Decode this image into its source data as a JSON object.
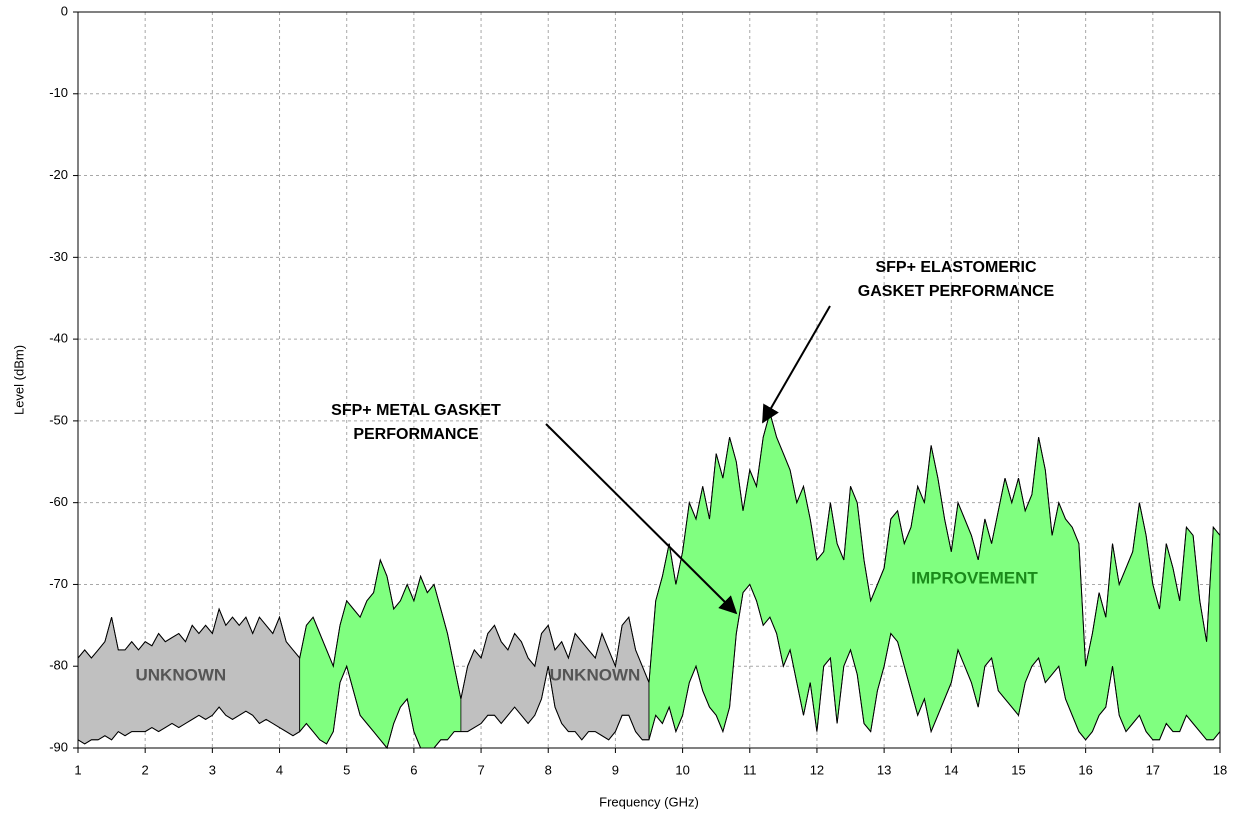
{
  "chart_data": {
    "type": "band",
    "xlabel": "Frequency (GHz)",
    "ylabel": "Level (dBm)",
    "xlim": [
      1,
      18
    ],
    "ylim": [
      -90,
      0
    ],
    "xticks": [
      1,
      2,
      3,
      4,
      5,
      6,
      7,
      8,
      9,
      10,
      11,
      12,
      13,
      14,
      15,
      16,
      17,
      18
    ],
    "yticks": [
      0,
      -10,
      -20,
      -30,
      -40,
      -50,
      -60,
      -70,
      -80,
      -90
    ],
    "grid": true,
    "x": [
      1,
      1.1,
      1.2,
      1.3,
      1.4,
      1.5,
      1.6,
      1.7,
      1.8,
      1.9,
      2,
      2.1,
      2.2,
      2.3,
      2.4,
      2.5,
      2.6,
      2.7,
      2.8,
      2.9,
      3,
      3.1,
      3.2,
      3.3,
      3.4,
      3.5,
      3.6,
      3.7,
      3.8,
      3.9,
      4,
      4.1,
      4.2,
      4.3,
      4.4,
      4.5,
      4.6,
      4.7,
      4.8,
      4.9,
      5,
      5.1,
      5.2,
      5.3,
      5.4,
      5.5,
      5.6,
      5.7,
      5.8,
      5.9,
      6,
      6.1,
      6.2,
      6.3,
      6.4,
      6.5,
      6.6,
      6.7,
      6.8,
      6.9,
      7,
      7.1,
      7.2,
      7.3,
      7.4,
      7.5,
      7.6,
      7.7,
      7.8,
      7.9,
      8,
      8.1,
      8.2,
      8.3,
      8.4,
      8.5,
      8.6,
      8.7,
      8.8,
      8.9,
      9,
      9.1,
      9.2,
      9.3,
      9.4,
      9.5,
      9.6,
      9.7,
      9.8,
      9.9,
      10,
      10.1,
      10.2,
      10.3,
      10.4,
      10.5,
      10.6,
      10.7,
      10.8,
      10.9,
      11,
      11.1,
      11.2,
      11.3,
      11.4,
      11.5,
      11.6,
      11.7,
      11.8,
      11.9,
      12,
      12.1,
      12.2,
      12.3,
      12.4,
      12.5,
      12.6,
      12.7,
      12.8,
      12.9,
      13,
      13.1,
      13.2,
      13.3,
      13.4,
      13.5,
      13.6,
      13.7,
      13.8,
      13.9,
      14,
      14.1,
      14.2,
      14.3,
      14.4,
      14.5,
      14.6,
      14.7,
      14.8,
      14.9,
      15,
      15.1,
      15.2,
      15.3,
      15.4,
      15.5,
      15.6,
      15.7,
      15.8,
      15.9,
      16,
      16.1,
      16.2,
      16.3,
      16.4,
      16.5,
      16.6,
      16.7,
      16.8,
      16.9,
      17,
      17.1,
      17.2,
      17.3,
      17.4,
      17.5,
      17.6,
      17.7,
      17.8,
      17.9,
      18
    ],
    "upper": {
      "color": "#000000",
      "values": [
        -79,
        -78,
        -79,
        -78,
        -77,
        -74,
        -78,
        -78,
        -77,
        -78,
        -77,
        -77.5,
        -76,
        -77,
        -76.5,
        -76,
        -77,
        -75,
        -76,
        -75,
        -76,
        -73,
        -75,
        -74,
        -75,
        -74,
        -76,
        -74,
        -75,
        -76,
        -74,
        -77,
        -78,
        -79,
        -75,
        -74,
        -76,
        -78,
        -80,
        -75,
        -72,
        -73,
        -74,
        -72,
        -71,
        -67,
        -69,
        -73,
        -72,
        -70,
        -72,
        -69,
        -71,
        -70,
        -73,
        -76,
        -80,
        -84,
        -80,
        -78,
        -79,
        -76,
        -75,
        -77,
        -78,
        -76,
        -77,
        -79,
        -80,
        -76,
        -75,
        -78,
        -77,
        -79,
        -76,
        -77,
        -78,
        -79,
        -76,
        -78,
        -80,
        -75,
        -74,
        -78,
        -80,
        -82,
        -72,
        -69,
        -65,
        -70,
        -66,
        -60,
        -62,
        -58,
        -62,
        -54,
        -57,
        -52,
        -55,
        -61,
        -56,
        -58,
        -52,
        -49,
        -52,
        -54,
        -56,
        -60,
        -58,
        -62,
        -67,
        -66,
        -60,
        -65,
        -67,
        -58,
        -60,
        -67,
        -72,
        -70,
        -68,
        -62,
        -61,
        -65,
        -63,
        -58,
        -60,
        -53,
        -57,
        -62,
        -66,
        -60,
        -62,
        -64,
        -67,
        -62,
        -65,
        -61,
        -57,
        -60,
        -57,
        -61,
        -59,
        -52,
        -56,
        -64,
        -60,
        -62,
        -63,
        -65,
        -80,
        -76,
        -71,
        -74,
        -65,
        -70,
        -68,
        -66,
        -60,
        -64,
        -70,
        -73,
        -65,
        -68,
        -72,
        -63,
        -64,
        -72,
        -77,
        -63,
        -64
      ]
    },
    "lower": {
      "color": "#000000",
      "values": [
        -89,
        -89.5,
        -89,
        -89,
        -88.5,
        -89,
        -88,
        -88.5,
        -88,
        -88,
        -88,
        -87.5,
        -88,
        -87.5,
        -87,
        -87.5,
        -87,
        -86.5,
        -86,
        -86.5,
        -86,
        -85,
        -86,
        -86.5,
        -86,
        -85.5,
        -86,
        -87,
        -86.5,
        -87,
        -87.5,
        -88,
        -88.5,
        -88,
        -87,
        -88,
        -89,
        -89.5,
        -88,
        -82,
        -80,
        -83,
        -86,
        -87,
        -88,
        -89,
        -90,
        -87,
        -85,
        -84,
        -88,
        -90,
        -90,
        -90,
        -89,
        -89,
        -88,
        -88,
        -88,
        -87.5,
        -87,
        -86,
        -86,
        -87,
        -86,
        -85,
        -86,
        -87,
        -86,
        -84,
        -80,
        -85,
        -87,
        -88,
        -88,
        -89,
        -88,
        -88,
        -88.5,
        -89,
        -88,
        -86,
        -86,
        -88,
        -89,
        -89,
        -86,
        -87,
        -85,
        -88,
        -86,
        -82,
        -80,
        -83,
        -85,
        -86,
        -88,
        -85,
        -76,
        -71,
        -70,
        -72,
        -75,
        -74,
        -76,
        -80,
        -78,
        -82,
        -86,
        -82,
        -88,
        -80,
        -79,
        -87,
        -80,
        -78,
        -81,
        -87,
        -88,
        -83,
        -80,
        -76,
        -77,
        -80,
        -83,
        -86,
        -84,
        -88,
        -86,
        -84,
        -82,
        -78,
        -80,
        -82,
        -85,
        -80,
        -79,
        -83,
        -84,
        -85,
        -86,
        -82,
        -80,
        -79,
        -82,
        -81,
        -80,
        -84,
        -86,
        -88,
        -89,
        -88,
        -86,
        -85,
        -80,
        -86,
        -88,
        -87,
        -86,
        -88,
        -89,
        -89,
        -87,
        -88,
        -88,
        -86,
        -87,
        -88,
        -89,
        -89,
        -88
      ]
    },
    "regions": [
      {
        "from": 1,
        "to": 4.3,
        "color": "#c0c0c0",
        "label": "UNKNOWN"
      },
      {
        "from": 4.3,
        "to": 6.7,
        "color": "#80ff80"
      },
      {
        "from": 6.7,
        "to": 9.5,
        "color": "#c0c0c0",
        "label": "UNKNOWN"
      },
      {
        "from": 9.5,
        "to": 18,
        "color": "#80ff80",
        "label": "IMPROVEMENT"
      }
    ],
    "annotations": [
      {
        "lines": [
          "SFP+ ELASTOMERIC",
          "GASKET PERFORMANCE"
        ]
      },
      {
        "lines": [
          "SFP+ METAL GASKET",
          "PERFORMANCE"
        ]
      }
    ]
  }
}
